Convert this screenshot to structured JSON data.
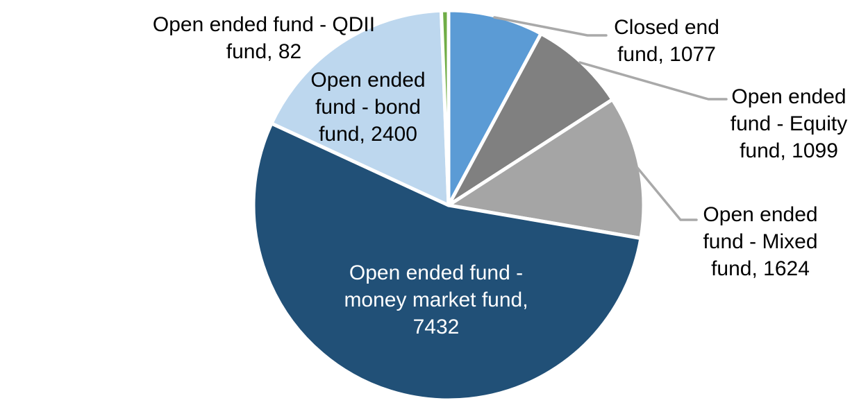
{
  "chart_data": {
    "type": "pie",
    "title": "",
    "direction": "clockwise",
    "start_angle_deg": 0,
    "legend": "none",
    "data_label_style": "category name, value",
    "leader_line_color": "#A9A9A9",
    "slices": [
      {
        "id": "closed-end-fund",
        "label": "Closed end fund",
        "value": 1077,
        "color": "#5B9BD5"
      },
      {
        "id": "open-ended-equity-fund",
        "label": "Open ended fund - Equity fund",
        "value": 1099,
        "color": "#808080"
      },
      {
        "id": "open-ended-mixed-fund",
        "label": "Open ended fund - Mixed fund",
        "value": 1624,
        "color": "#A5A5A5"
      },
      {
        "id": "open-ended-money-market-fund",
        "label": "Open ended fund - money market fund",
        "value": 7432,
        "color": "#215077"
      },
      {
        "id": "open-ended-bond-fund",
        "label": "Open ended fund - bond fund",
        "value": 2400,
        "color": "#BDD7EE"
      },
      {
        "id": "open-ended-qdii-fund",
        "label": "Open ended fund - QDII fund",
        "value": 82,
        "color": "#70AD47"
      }
    ]
  },
  "callouts": {
    "qdii": {
      "line1": "Open ended fund - QDII",
      "line2": "fund, 82"
    },
    "bond": {
      "line1": "Open ended",
      "line2": "fund - bond",
      "line3": "fund, 2400"
    },
    "closed_end": {
      "line1": "Closed end",
      "line2": "fund, 1077"
    },
    "equity": {
      "line1": "Open ended",
      "line2": "fund - Equity",
      "line3": "fund, 1099"
    },
    "mixed": {
      "line1": "Open ended",
      "line2": "fund - Mixed",
      "line3": "fund, 1624"
    },
    "money_market": {
      "line1": "Open ended fund -",
      "line2": "money market fund,",
      "line3": "7432"
    }
  }
}
